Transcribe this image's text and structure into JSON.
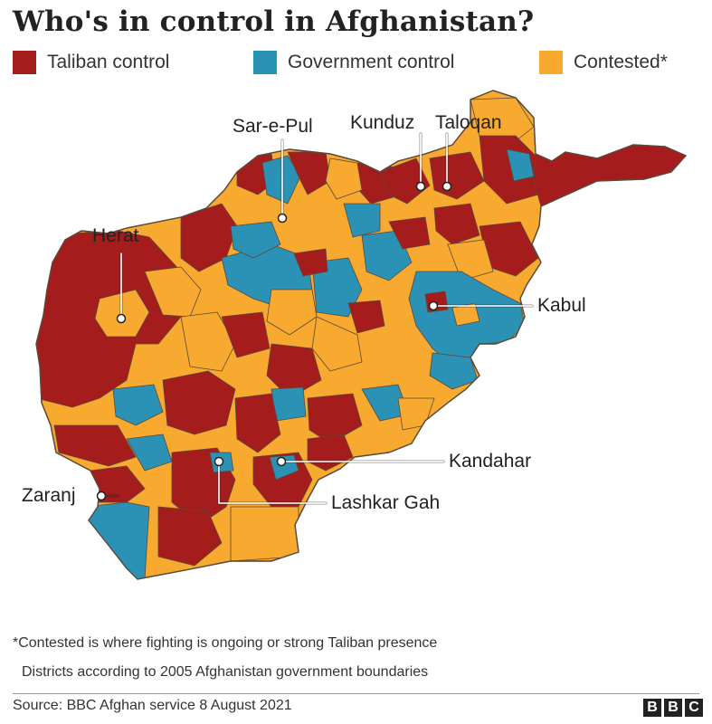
{
  "title": "Who's in control in Afghanistan?",
  "legend": [
    {
      "label": "Taliban control",
      "color": "#a51c1c"
    },
    {
      "label": "Government control",
      "color": "#2b91b5"
    },
    {
      "label": "Contested*",
      "color": "#f7a930"
    }
  ],
  "cities": {
    "sar_e_pul": "Sar-e-Pul",
    "kunduz": "Kunduz",
    "taloqan": "Taloqan",
    "herat": "Herat",
    "kabul": "Kabul",
    "kandahar": "Kandahar",
    "zaranj": "Zaranj",
    "lashkar_gah": "Lashkar Gah"
  },
  "footnotes": {
    "contested_note": "*Contested is where fighting is ongoing or strong Taliban presence",
    "districts_note": "Districts according to 2005 Afghanistan government boundaries"
  },
  "source": "Source: BBC Afghan service 8 August 2021",
  "logo": [
    "B",
    "B",
    "C"
  ],
  "colors": {
    "taliban": "#a51c1c",
    "government": "#2b91b5",
    "contested": "#f7a930",
    "border": "#5a4a3a",
    "marker_line": "#ffffff"
  }
}
